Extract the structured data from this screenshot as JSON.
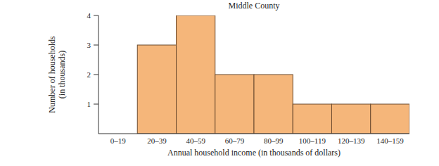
{
  "chart_data": {
    "type": "histogram",
    "title": "Middle County",
    "x_label": "Annual household income (in thousands of dollars)",
    "y_label": [
      "Number of households",
      "(in thousands)"
    ],
    "categories": [
      "0–19",
      "20–39",
      "40–59",
      "60–79",
      "80–99",
      "100–119",
      "120–139",
      "140–159"
    ],
    "values": [
      0,
      3,
      4,
      2,
      2,
      1,
      1,
      1
    ],
    "color": "#f5b67a",
    "ylim": [
      0,
      4
    ],
    "yticks": [
      1,
      2,
      3,
      4
    ],
    "grid": false
  }
}
